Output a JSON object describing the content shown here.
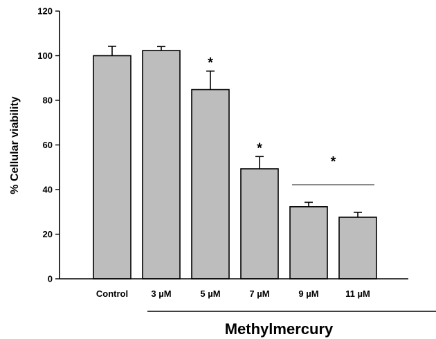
{
  "chart_data": {
    "type": "bar",
    "ylabel": "% Cellular viability",
    "group_label": "Methylmercury",
    "categories": [
      "Control",
      "3 µM",
      "5 µM",
      "7 µM",
      "9 µM",
      "11 µM"
    ],
    "values": [
      100,
      102.3,
      84.8,
      49.3,
      32.3,
      27.6
    ],
    "errors": [
      4.2,
      1.8,
      8.3,
      5.5,
      2.0,
      2.2
    ],
    "ylim": [
      0,
      120
    ],
    "yticks": [
      "0",
      "20",
      "40",
      "60",
      "80",
      "100",
      "120"
    ],
    "significance": [
      {
        "category": "5 µM",
        "marker": "*"
      },
      {
        "category": "7 µM",
        "marker": "*"
      },
      {
        "categories": [
          "9 µM",
          "11 µM"
        ],
        "marker": "*",
        "bracket": true
      }
    ],
    "bar_color": "#bdbdbd",
    "grid": false,
    "legend": "none"
  }
}
